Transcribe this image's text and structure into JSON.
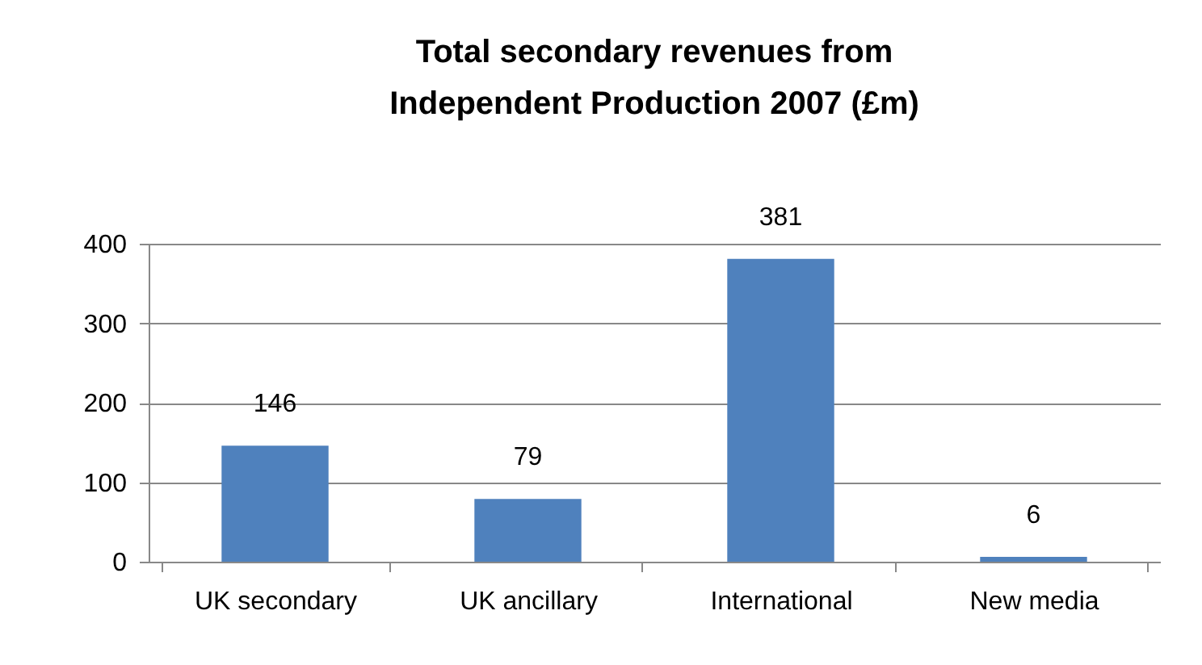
{
  "chart_data": {
    "type": "bar",
    "title": "Total secondary revenues from Independent Production 2007 (£m)",
    "categories": [
      "UK secondary",
      "UK ancillary",
      "International",
      "New media"
    ],
    "values": [
      146,
      79,
      381,
      6
    ],
    "color": "#4f81bd",
    "ylim": [
      0,
      400
    ],
    "yticks": [
      0,
      100,
      200,
      300,
      400
    ],
    "grid": "y",
    "data_labels": true
  }
}
